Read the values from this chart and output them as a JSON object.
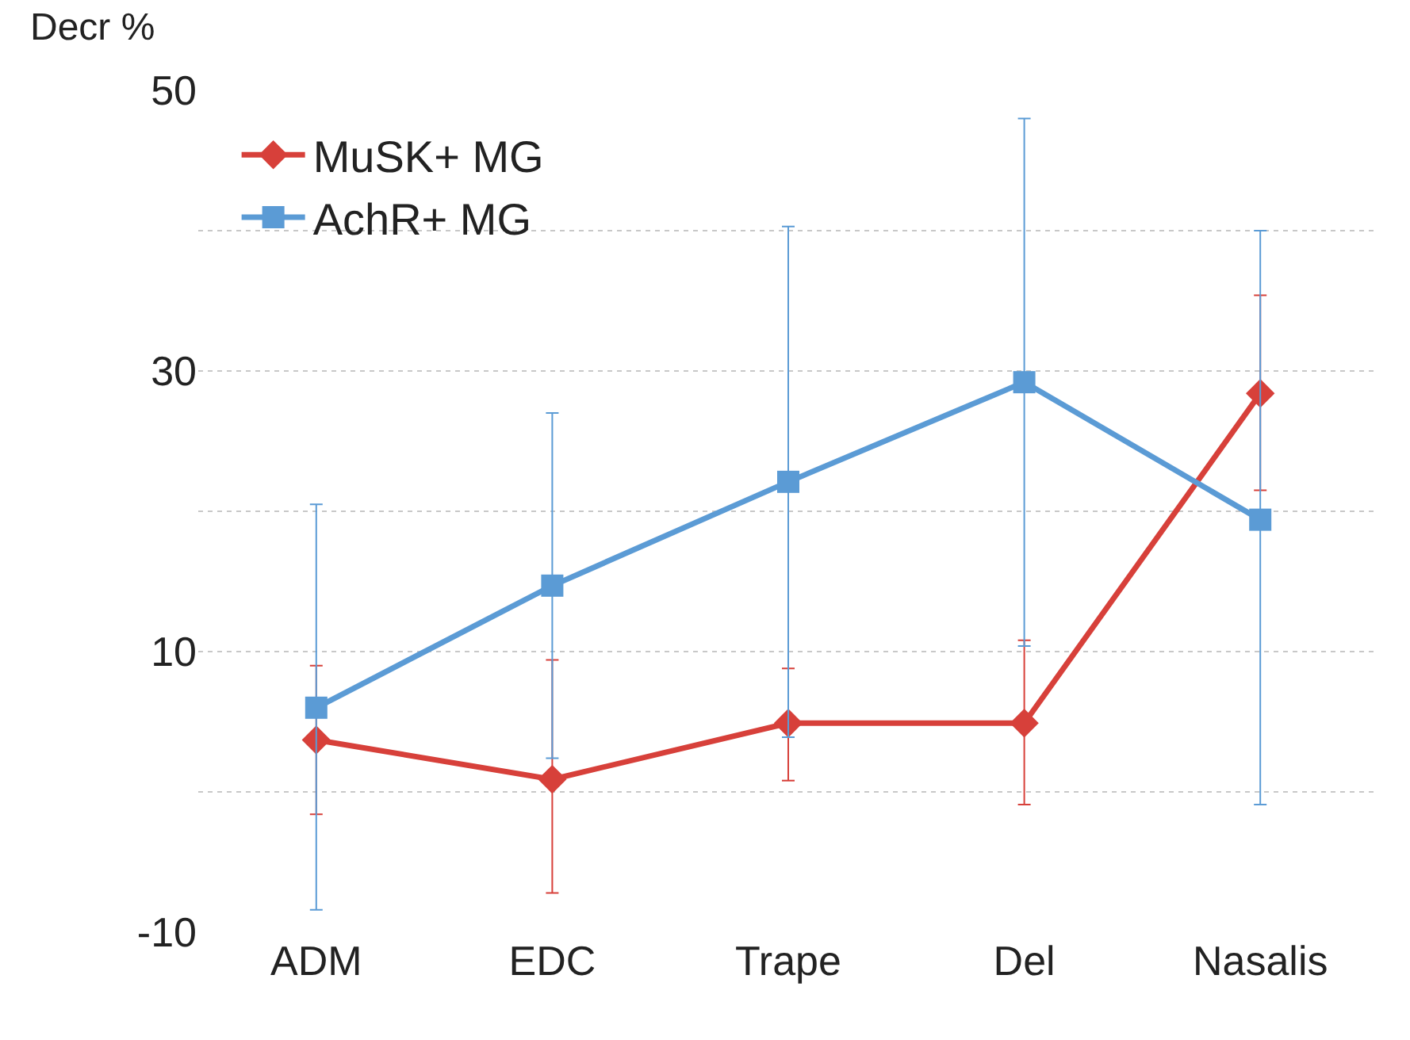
{
  "chart_data": {
    "type": "line",
    "ylabel": "Decr %",
    "categories": [
      "ADM",
      "EDC",
      "Trape",
      "Del",
      "Nasalis"
    ],
    "series": [
      {
        "name": "MuSK+ MG",
        "color": "#d7403a",
        "marker": "diamond",
        "values": [
          3.7,
          0.9,
          4.9,
          4.9,
          28.4
        ],
        "errors": [
          [
            -1.6,
            9.0
          ],
          [
            -7.2,
            9.4
          ],
          [
            0.8,
            8.8
          ],
          [
            -0.9,
            10.8
          ],
          [
            21.5,
            35.4
          ]
        ]
      },
      {
        "name": "AchR+ MG",
        "color": "#5b9bd5",
        "marker": "square",
        "values": [
          6.0,
          14.7,
          22.1,
          29.2,
          19.4
        ],
        "errors": [
          [
            -8.4,
            20.5
          ],
          [
            2.4,
            27.0
          ],
          [
            3.9,
            40.3
          ],
          [
            10.4,
            48.0
          ],
          [
            -0.9,
            40.0
          ]
        ]
      }
    ],
    "ylim": [
      -10,
      50
    ],
    "yticks": [
      -10,
      {
        "value": 0,
        "label": null
      },
      10,
      {
        "value": 20,
        "label": null
      },
      30,
      {
        "value": 40,
        "label": null
      },
      50
    ],
    "grid": "y",
    "legend": "top left",
    "line_style": "solid"
  }
}
